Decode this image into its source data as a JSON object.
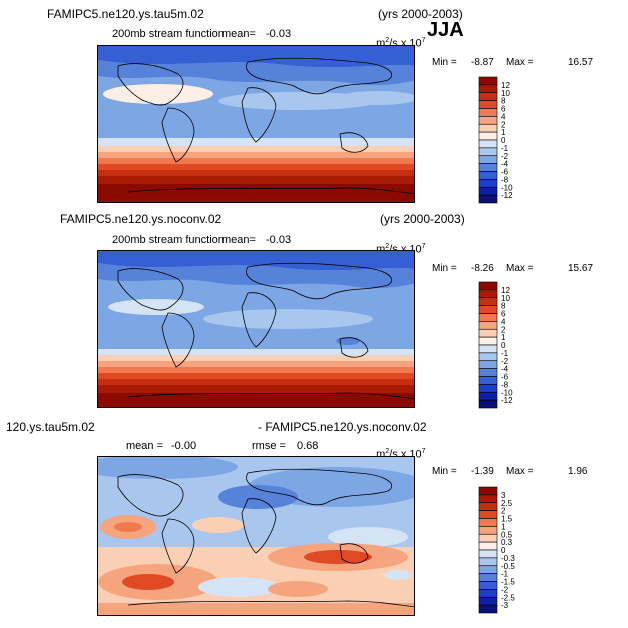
{
  "season": "JJA",
  "panels": [
    {
      "title_left": "FAMIPC5.ne120.ys.tau5m.02",
      "title_right": "(yrs 2000-2003)",
      "subtitle": "200mb stream function",
      "mean_label": "mean=",
      "mean_value": "-0.03",
      "units": "m",
      "units_sup": "2",
      "units_mid": "/s x 10",
      "units_exp": "7",
      "min_label": "Min =",
      "min_value": "-8.87",
      "max_label": "Max =",
      "max_value": "16.57",
      "colorbar_levels": [
        "12",
        "10",
        "8",
        "6",
        "4",
        "2",
        "1",
        "0",
        "-1",
        "-2",
        "-4",
        "-6",
        "-8",
        "-10",
        "-12"
      ]
    },
    {
      "title_left": "FAMIPC5.ne120.ys.noconv.02",
      "title_right": "(yrs 2000-2003)",
      "subtitle": "200mb stream function",
      "mean_label": "mean=",
      "mean_value": "-0.03",
      "units": "m",
      "units_sup": "2",
      "units_mid": "/s x 10",
      "units_exp": "7",
      "min_label": "Min =",
      "min_value": "-8.26",
      "max_label": "Max =",
      "max_value": "15.67",
      "colorbar_levels": [
        "12",
        "10",
        "8",
        "6",
        "4",
        "2",
        "1",
        "0",
        "-1",
        "-2",
        "-4",
        "-6",
        "-8",
        "-10",
        "-12"
      ]
    },
    {
      "title_left": "120.ys.tau5m.02",
      "title_right": "- FAMIPC5.ne120.ys.noconv.02",
      "mean_label": "mean =",
      "mean_value": "-0.00",
      "rmse_label": "rmse =",
      "rmse_value": "0.68",
      "units": "m",
      "units_sup": "2",
      "units_mid": "/s x 10",
      "units_exp": "7",
      "min_label": "Min =",
      "min_value": "-1.39",
      "max_label": "Max =",
      "max_value": "1.96",
      "colorbar_levels": [
        "3",
        "2.5",
        "2",
        "1.5",
        "1",
        "0.5",
        "0.3",
        "0",
        "-0.3",
        "-0.5",
        "-1",
        "-1.5",
        "-2",
        "-2.5",
        "-3"
      ]
    }
  ],
  "colors": {
    "scale": [
      "#8b0a00",
      "#a91a05",
      "#c72e10",
      "#df4a24",
      "#ee7a4e",
      "#f6a47e",
      "#fbcfb4",
      "#fdeee6",
      "#d5e3f6",
      "#a9c6ee",
      "#7da6e4",
      "#5682da",
      "#3460d4",
      "#1a3fc8",
      "#0c1fa6",
      "#0a0f7a"
    ],
    "land_outline": "#000000"
  }
}
